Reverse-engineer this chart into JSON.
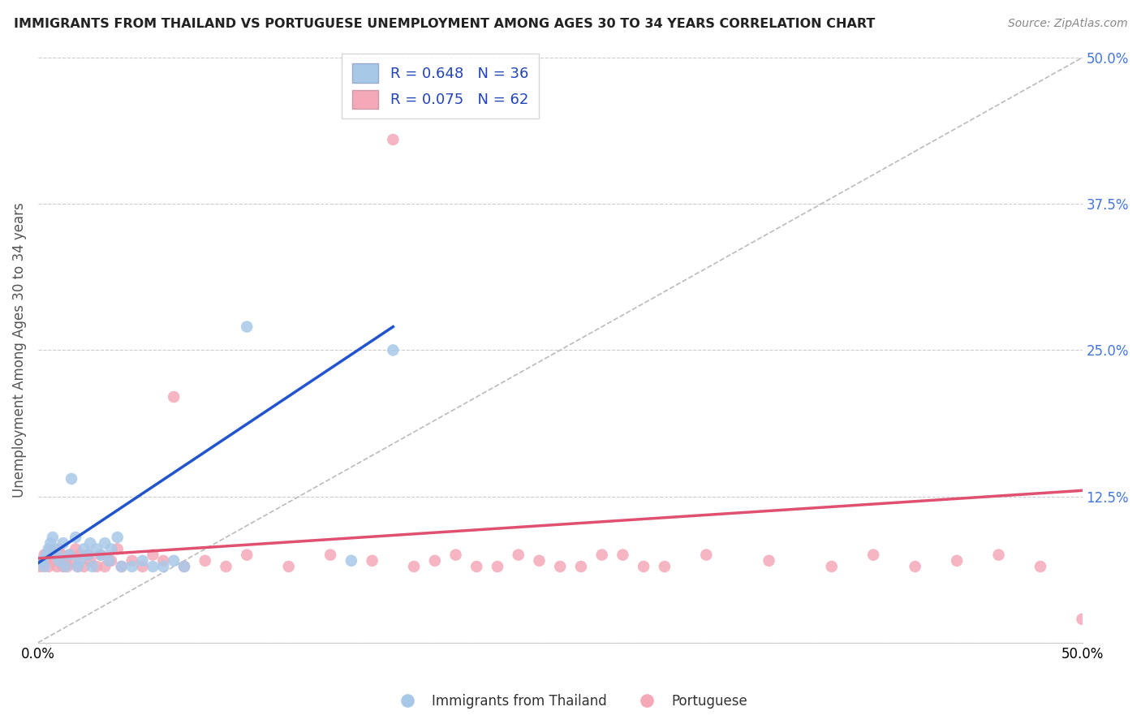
{
  "title": "IMMIGRANTS FROM THAILAND VS PORTUGUESE UNEMPLOYMENT AMONG AGES 30 TO 34 YEARS CORRELATION CHART",
  "source": "Source: ZipAtlas.com",
  "ylabel": "Unemployment Among Ages 30 to 34 years",
  "xlim": [
    0.0,
    0.5
  ],
  "ylim": [
    0.0,
    0.5
  ],
  "xtick_positions": [
    0.0,
    0.5
  ],
  "xtick_labels": [
    "0.0%",
    "50.0%"
  ],
  "ytick_positions": [
    0.0,
    0.125,
    0.25,
    0.375,
    0.5
  ],
  "ytick_labels": [
    "",
    "12.5%",
    "25.0%",
    "37.5%",
    "50.0%"
  ],
  "legend_r1": "R = 0.648",
  "legend_n1": "N = 36",
  "legend_r2": "R = 0.075",
  "legend_n2": "N = 62",
  "color_thailand": "#a8c8e8",
  "color_portuguese": "#f4a8b8",
  "color_line_thailand": "#2255cc",
  "color_line_portuguese": "#e05070",
  "color_legend_text": "#2244bb",
  "color_ytick": "#4477dd",
  "thailand_x": [
    0.002,
    0.003,
    0.004,
    0.005,
    0.006,
    0.007,
    0.008,
    0.009,
    0.01,
    0.012,
    0.013,
    0.015,
    0.016,
    0.018,
    0.019,
    0.02,
    0.022,
    0.024,
    0.025,
    0.026,
    0.028,
    0.03,
    0.032,
    0.034,
    0.035,
    0.038,
    0.04,
    0.045,
    0.05,
    0.055,
    0.06,
    0.065,
    0.07,
    0.1,
    0.15,
    0.17
  ],
  "thailand_y": [
    0.07,
    0.065,
    0.075,
    0.08,
    0.085,
    0.09,
    0.08,
    0.075,
    0.07,
    0.085,
    0.065,
    0.075,
    0.14,
    0.09,
    0.065,
    0.07,
    0.08,
    0.075,
    0.085,
    0.065,
    0.08,
    0.075,
    0.085,
    0.07,
    0.08,
    0.09,
    0.065,
    0.065,
    0.07,
    0.065,
    0.065,
    0.07,
    0.065,
    0.27,
    0.07,
    0.25
  ],
  "portuguese_x": [
    0.001,
    0.003,
    0.004,
    0.005,
    0.006,
    0.007,
    0.008,
    0.009,
    0.01,
    0.011,
    0.012,
    0.013,
    0.014,
    0.015,
    0.016,
    0.018,
    0.019,
    0.02,
    0.022,
    0.024,
    0.025,
    0.028,
    0.03,
    0.032,
    0.035,
    0.038,
    0.04,
    0.045,
    0.05,
    0.055,
    0.06,
    0.065,
    0.07,
    0.08,
    0.09,
    0.1,
    0.12,
    0.14,
    0.16,
    0.18,
    0.2,
    0.22,
    0.24,
    0.26,
    0.28,
    0.3,
    0.32,
    0.35,
    0.38,
    0.4,
    0.42,
    0.44,
    0.46,
    0.48,
    0.5,
    0.17,
    0.19,
    0.21,
    0.23,
    0.25,
    0.27,
    0.29
  ],
  "portuguese_y": [
    0.065,
    0.075,
    0.07,
    0.065,
    0.08,
    0.075,
    0.07,
    0.065,
    0.08,
    0.075,
    0.065,
    0.07,
    0.065,
    0.075,
    0.07,
    0.08,
    0.065,
    0.075,
    0.065,
    0.075,
    0.07,
    0.065,
    0.075,
    0.065,
    0.07,
    0.08,
    0.065,
    0.07,
    0.065,
    0.075,
    0.07,
    0.21,
    0.065,
    0.07,
    0.065,
    0.075,
    0.065,
    0.075,
    0.07,
    0.065,
    0.075,
    0.065,
    0.07,
    0.065,
    0.075,
    0.065,
    0.075,
    0.07,
    0.065,
    0.075,
    0.065,
    0.07,
    0.075,
    0.065,
    0.02,
    0.43,
    0.07,
    0.065,
    0.075,
    0.065,
    0.075,
    0.065
  ],
  "th_line_x": [
    0.0,
    0.17
  ],
  "th_line_y": [
    0.068,
    0.27
  ],
  "pt_line_x": [
    0.0,
    0.5
  ],
  "pt_line_y": [
    0.072,
    0.13
  ]
}
